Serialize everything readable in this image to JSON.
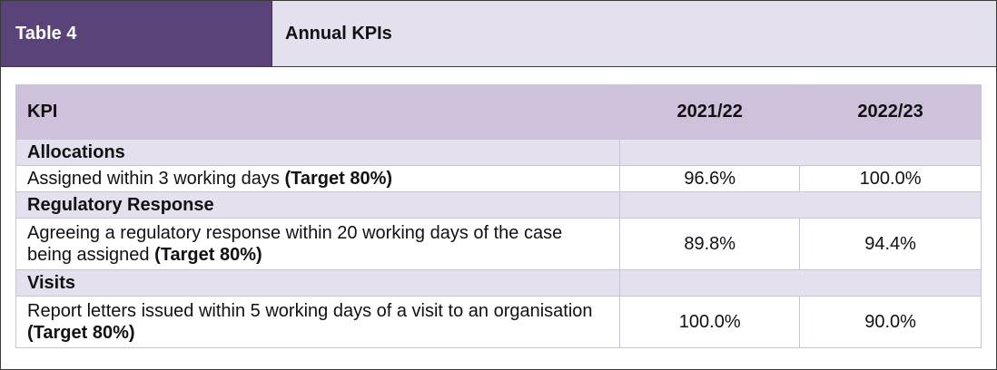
{
  "header": {
    "table_number": "Table 4",
    "title": "Annual KPIs"
  },
  "table": {
    "columns": [
      "KPI",
      "2021/22",
      "2022/23"
    ],
    "sections": [
      {
        "name": "Allocations",
        "rows": [
          {
            "kpi": "Assigned within 3 working days",
            "target": "(Target 80%)",
            "v2021": "96.6%",
            "v2022": "100.0%"
          }
        ]
      },
      {
        "name": "Regulatory Response",
        "rows": [
          {
            "kpi": "Agreeing a regulatory response within 20 working days of the case being assigned",
            "target": "(Target 80%)",
            "v2021": "89.8%",
            "v2022": "94.4%"
          }
        ]
      },
      {
        "name": "Visits",
        "rows": [
          {
            "kpi": "Report letters issued within 5 working days of a visit to an organisation",
            "target": "(Target 80%)",
            "v2021": "100.0%",
            "v2022": "90.0%"
          }
        ]
      }
    ]
  },
  "colors": {
    "header_dark": "#5a4378",
    "header_light": "#e4e0ee",
    "column_header": "#cdc1dc",
    "section_row": "#e4e0ee"
  }
}
